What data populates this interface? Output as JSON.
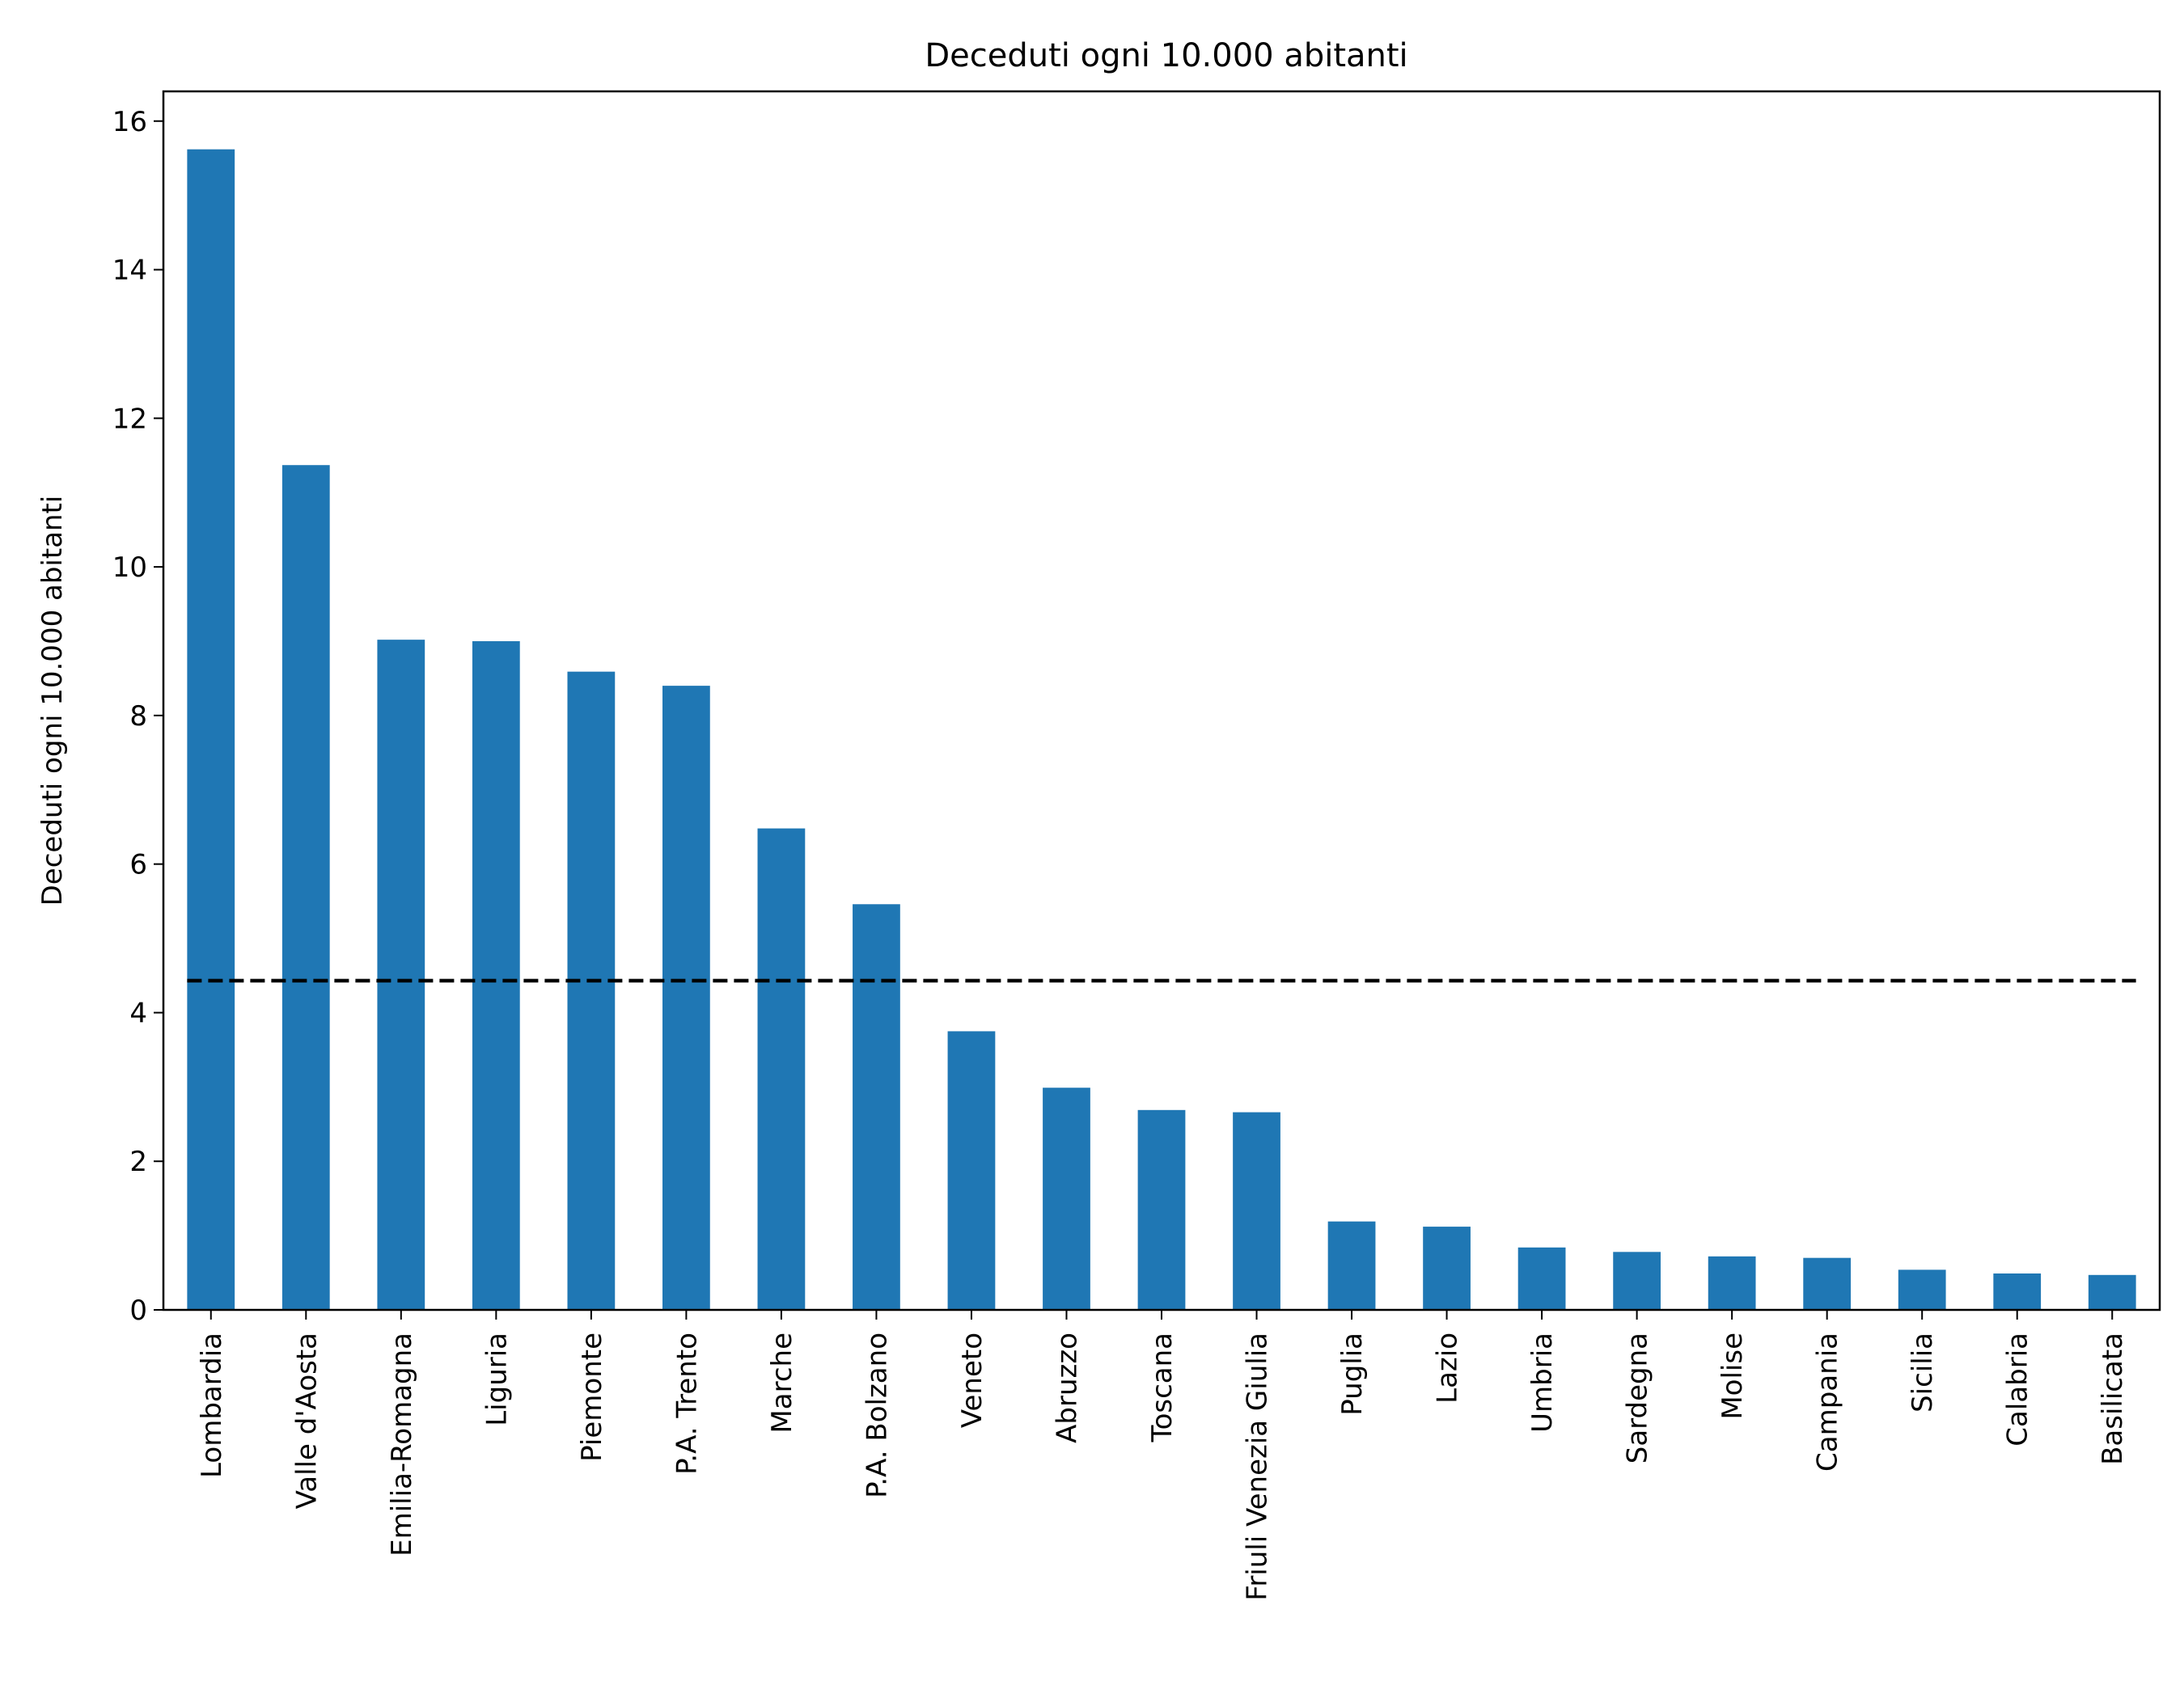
{
  "chart_data": {
    "type": "bar",
    "title": "Deceduti ogni 10.000 abitanti",
    "xlabel": "",
    "ylabel": "Deceduti ogni 10.000 abitanti",
    "ylim": [
      0,
      16.4
    ],
    "yticks": [
      0,
      2,
      4,
      6,
      8,
      10,
      12,
      14,
      16
    ],
    "grid": false,
    "bar_color": "#1f77b4",
    "reference_line": {
      "value": 4.43,
      "style": "dashed",
      "color": "#000000"
    },
    "categories": [
      "Lombardia",
      "Valle d'Aosta",
      "Emilia-Romagna",
      "Liguria",
      "Piemonte",
      "P.A. Trento",
      "Marche",
      "P.A. Bolzano",
      "Veneto",
      "Abruzzo",
      "Toscana",
      "Friuli Venezia Giulia",
      "Puglia",
      "Lazio",
      "Umbria",
      "Sardegna",
      "Molise",
      "Campania",
      "Sicilia",
      "Calabria",
      "Basilicata"
    ],
    "values": [
      15.62,
      11.37,
      9.02,
      9.0,
      8.59,
      8.4,
      6.48,
      5.46,
      3.75,
      2.99,
      2.69,
      2.66,
      1.19,
      1.12,
      0.84,
      0.78,
      0.72,
      0.7,
      0.54,
      0.49,
      0.47
    ]
  }
}
